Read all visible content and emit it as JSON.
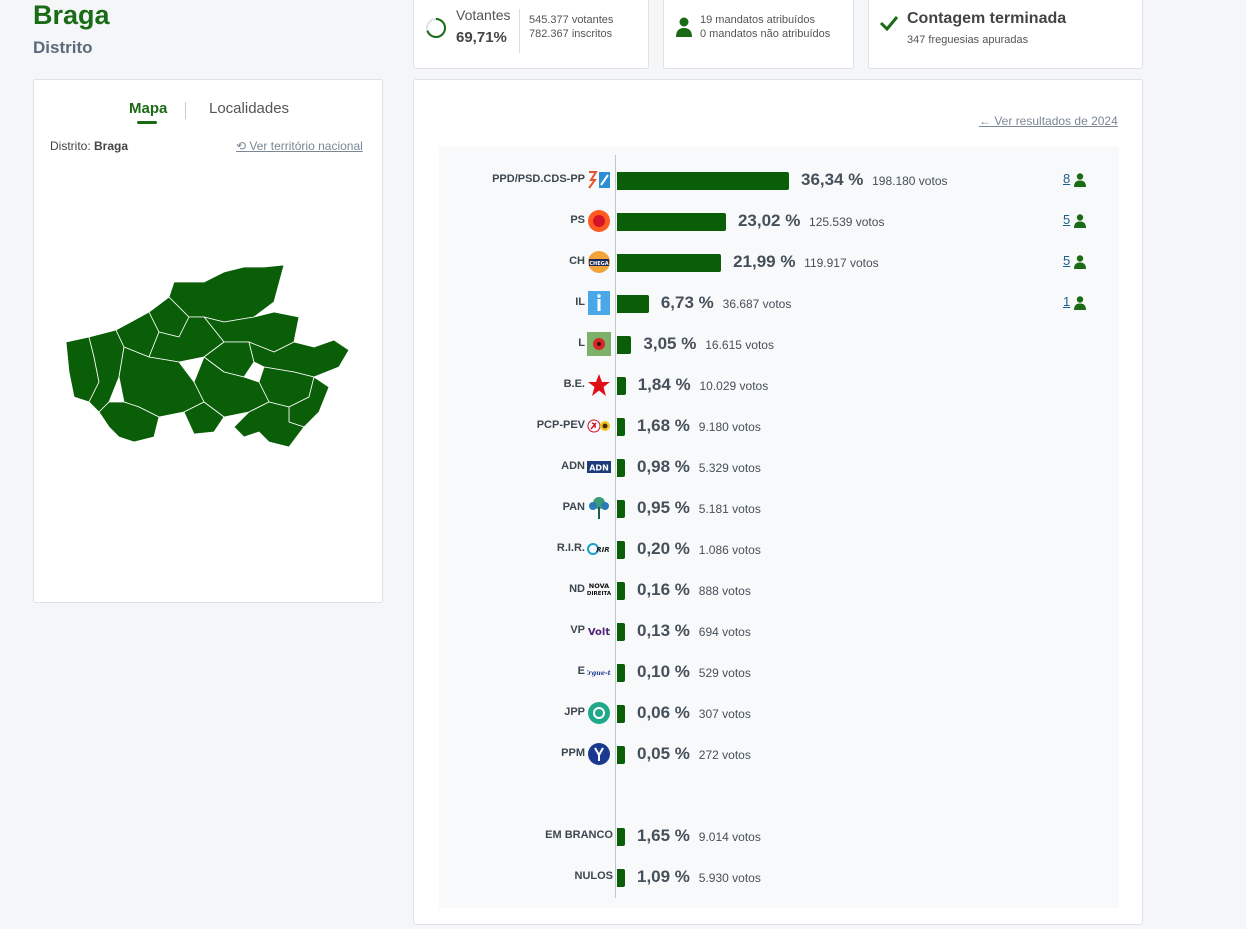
{
  "header": {
    "title": "Braga",
    "subtitle": "Distrito"
  },
  "stats": {
    "votantes_label": "Votantes",
    "votantes_pct": "69,71%",
    "votantes_count": "545.377 votantes",
    "inscritos_count": "782.367 inscritos",
    "mandatos_atribuidos": "19 mandatos atribuídos",
    "mandatos_nao_atribuidos": "0 mandatos não atribuídos",
    "contagem_title": "Contagem terminada",
    "freguesias": "347 freguesias apuradas"
  },
  "map_card": {
    "tab_mapa": "Mapa",
    "tab_localidades": "Localidades",
    "distrito_label": "Distrito:",
    "distrito_value": "Braga",
    "nacional_link": "Ver território nacional",
    "map_color": "#0b5e08"
  },
  "results": {
    "back_link": "Ver resultados de 2024",
    "accent_color": "#0b5e08",
    "rows": [
      {
        "party": "PPD/PSD.CDS-PP",
        "pct": "36,34 %",
        "value": 36.34,
        "votes": "198.180 votos",
        "seats": "8",
        "logo": "ad-logo"
      },
      {
        "party": "PS",
        "pct": "23,02 %",
        "value": 23.02,
        "votes": "125.539 votos",
        "seats": "5",
        "logo": "ps-logo"
      },
      {
        "party": "CH",
        "pct": "21,99 %",
        "value": 21.99,
        "votes": "119.917 votos",
        "seats": "5",
        "logo": "chega-logo"
      },
      {
        "party": "IL",
        "pct": "6,73 %",
        "value": 6.73,
        "votes": "36.687 votos",
        "seats": "1",
        "logo": "il-logo"
      },
      {
        "party": "L",
        "pct": "3,05 %",
        "value": 3.05,
        "votes": "16.615 votos",
        "seats": "",
        "logo": "livre-logo"
      },
      {
        "party": "B.E.",
        "pct": "1,84 %",
        "value": 1.84,
        "votes": "10.029 votos",
        "seats": "",
        "logo": "be-logo"
      },
      {
        "party": "PCP-PEV",
        "pct": "1,68 %",
        "value": 1.68,
        "votes": "9.180 votos",
        "seats": "",
        "logo": "cdu-logo"
      },
      {
        "party": "ADN",
        "pct": "0,98 %",
        "value": 0.98,
        "votes": "5.329 votos",
        "seats": "",
        "logo": "adn-logo"
      },
      {
        "party": "PAN",
        "pct": "0,95 %",
        "value": 0.95,
        "votes": "5.181 votos",
        "seats": "",
        "logo": "pan-logo"
      },
      {
        "party": "R.I.R.",
        "pct": "0,20 %",
        "value": 0.2,
        "votes": "1.086 votos",
        "seats": "",
        "logo": "rir-logo"
      },
      {
        "party": "ND",
        "pct": "0,16 %",
        "value": 0.16,
        "votes": "888 votos",
        "seats": "",
        "logo": "nd-logo"
      },
      {
        "party": "VP",
        "pct": "0,13 %",
        "value": 0.13,
        "votes": "694 votos",
        "seats": "",
        "logo": "volt-logo"
      },
      {
        "party": "E",
        "pct": "0,10 %",
        "value": 0.1,
        "votes": "529 votos",
        "seats": "",
        "logo": "ergue-te-logo"
      },
      {
        "party": "JPP",
        "pct": "0,06 %",
        "value": 0.06,
        "votes": "307 votos",
        "seats": "",
        "logo": "jpp-logo"
      },
      {
        "party": "PPM",
        "pct": "0,05 %",
        "value": 0.05,
        "votes": "272 votos",
        "seats": "",
        "logo": "ppm-logo"
      },
      {
        "party": "EM BRANCO",
        "pct": "1,65 %",
        "value": 1.65,
        "votes": "9.014 votos",
        "seats": "",
        "logo": ""
      },
      {
        "party": "NULOS",
        "pct": "1,09 %",
        "value": 1.09,
        "votes": "5.930 votos",
        "seats": "",
        "logo": ""
      }
    ]
  },
  "chart_data": {
    "type": "bar",
    "categories": [
      "PPD/PSD.CDS-PP",
      "PS",
      "CH",
      "IL",
      "L",
      "B.E.",
      "PCP-PEV",
      "ADN",
      "PAN",
      "R.I.R.",
      "ND",
      "VP",
      "E",
      "JPP",
      "PPM",
      "EM BRANCO",
      "NULOS"
    ],
    "values": [
      36.34,
      23.02,
      21.99,
      6.73,
      3.05,
      1.84,
      1.68,
      0.98,
      0.95,
      0.2,
      0.16,
      0.13,
      0.1,
      0.06,
      0.05,
      1.65,
      1.09
    ],
    "votes": [
      198180,
      125539,
      119917,
      36687,
      16615,
      10029,
      9180,
      5329,
      5181,
      1086,
      888,
      694,
      529,
      307,
      272,
      9014,
      5930
    ],
    "seats": [
      8,
      5,
      5,
      1,
      0,
      0,
      0,
      0,
      0,
      0,
      0,
      0,
      0,
      0,
      0,
      0,
      0
    ],
    "title": "",
    "xlabel": "",
    "ylabel": ""
  }
}
